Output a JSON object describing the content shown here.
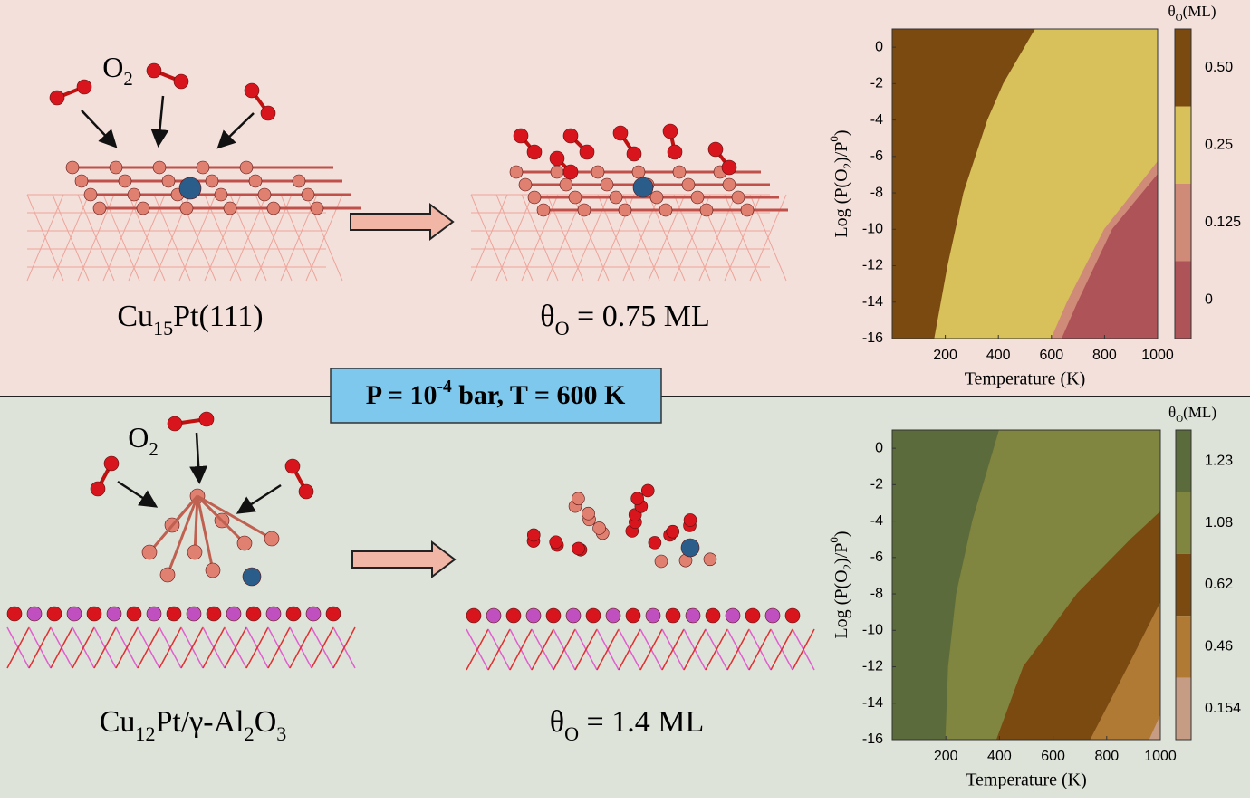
{
  "top": {
    "molecule_label": [
      {
        "text": "O"
      },
      {
        "sub": "2"
      }
    ],
    "initial_label": [
      {
        "text": "Cu"
      },
      {
        "sub": "15"
      },
      {
        "text": "Pt(111)"
      }
    ],
    "final_label": [
      {
        "text": "θ"
      },
      {
        "sub": "O"
      },
      {
        "text": " = 0.75 ML"
      }
    ],
    "chart": {
      "type": "contour",
      "xlabel": "Temperature (K)",
      "ylabel": [
        {
          "text": "Log (P(O"
        },
        {
          "sub": "2"
        },
        {
          "text": ")/P"
        },
        {
          "sup": "0"
        },
        {
          "text": ")"
        }
      ],
      "colorbar_title": [
        {
          "text": "θ"
        },
        {
          "sub": "O"
        },
        {
          "text": "(ML)"
        }
      ],
      "xlim": [
        0,
        1000
      ],
      "ylim": [
        -16,
        1
      ],
      "xticks": [
        200,
        400,
        600,
        800,
        1000
      ],
      "yticks": [
        0,
        -2,
        -4,
        -6,
        -8,
        -10,
        -12,
        -14,
        -16
      ],
      "colorbar_ticks": [
        {
          "value": 0.5,
          "label": "0.50"
        },
        0.25,
        0.125,
        0
      ],
      "level_colors": [
        "#7a4a10",
        "#d8c05a",
        "#d08a78",
        "#ae5357"
      ],
      "boundaries": [
        {
          "x": [
            540,
            420,
            360,
            270,
            210,
            160
          ],
          "y": [
            1,
            -2,
            -4,
            -8,
            -12,
            -16
          ]
        },
        {
          "x": [
            1000,
            800,
            660,
            600
          ],
          "y": [
            -6.3,
            -10,
            -14,
            -16
          ]
        },
        {
          "x": [
            1000,
            830,
            700,
            640
          ],
          "y": [
            -7,
            -10,
            -14,
            -16
          ]
        }
      ]
    }
  },
  "conditions": [
    {
      "text": "P = 10"
    },
    {
      "sup": "-4"
    },
    {
      "text": " bar, T = 600 K"
    }
  ],
  "bottom": {
    "molecule_label": [
      {
        "text": "O"
      },
      {
        "sub": "2"
      }
    ],
    "initial_label": [
      {
        "text": "Cu"
      },
      {
        "sub": "12"
      },
      {
        "text": "Pt/γ-Al"
      },
      {
        "sub": "2"
      },
      {
        "text": "O"
      },
      {
        "sub": "3"
      }
    ],
    "final_label": [
      {
        "text": "θ"
      },
      {
        "sub": "O"
      },
      {
        "text": " = 1.4 ML"
      }
    ],
    "chart": {
      "type": "contour",
      "xlabel": "Temperature (K)",
      "ylabel": [
        {
          "text": "Log (P(O"
        },
        {
          "sub": "2"
        },
        {
          "text": ")/P"
        },
        {
          "sup": "0"
        },
        {
          "text": ")"
        }
      ],
      "colorbar_title": [
        {
          "text": "θ"
        },
        {
          "sub": "O"
        },
        {
          "text": "(ML)"
        }
      ],
      "xlim": [
        0,
        1000
      ],
      "ylim": [
        -16,
        1
      ],
      "xticks": [
        200,
        400,
        600,
        800,
        1000
      ],
      "yticks": [
        0,
        -2,
        -4,
        -6,
        -8,
        -10,
        -12,
        -14,
        -16
      ],
      "colorbar_ticks": [
        1.23,
        1.08,
        0.62,
        0.46,
        0.154
      ],
      "level_colors": [
        "#5b6b3b",
        "#80853f",
        "#7a4a10",
        "#b07a35",
        "#c69c84"
      ],
      "boundaries": [
        {
          "x": [
            400,
            300,
            240,
            210,
            200
          ],
          "y": [
            1,
            -4,
            -8,
            -12,
            -16
          ]
        },
        {
          "x": [
            1000,
            890,
            690,
            490,
            390
          ],
          "y": [
            -3.5,
            -5,
            -8,
            -12,
            -16
          ]
        },
        {
          "x": [
            1000,
            880,
            740
          ],
          "y": [
            -8.5,
            -12,
            -16
          ]
        },
        {
          "x": [
            1000,
            960
          ],
          "y": [
            -14.7,
            -16
          ]
        }
      ]
    }
  }
}
